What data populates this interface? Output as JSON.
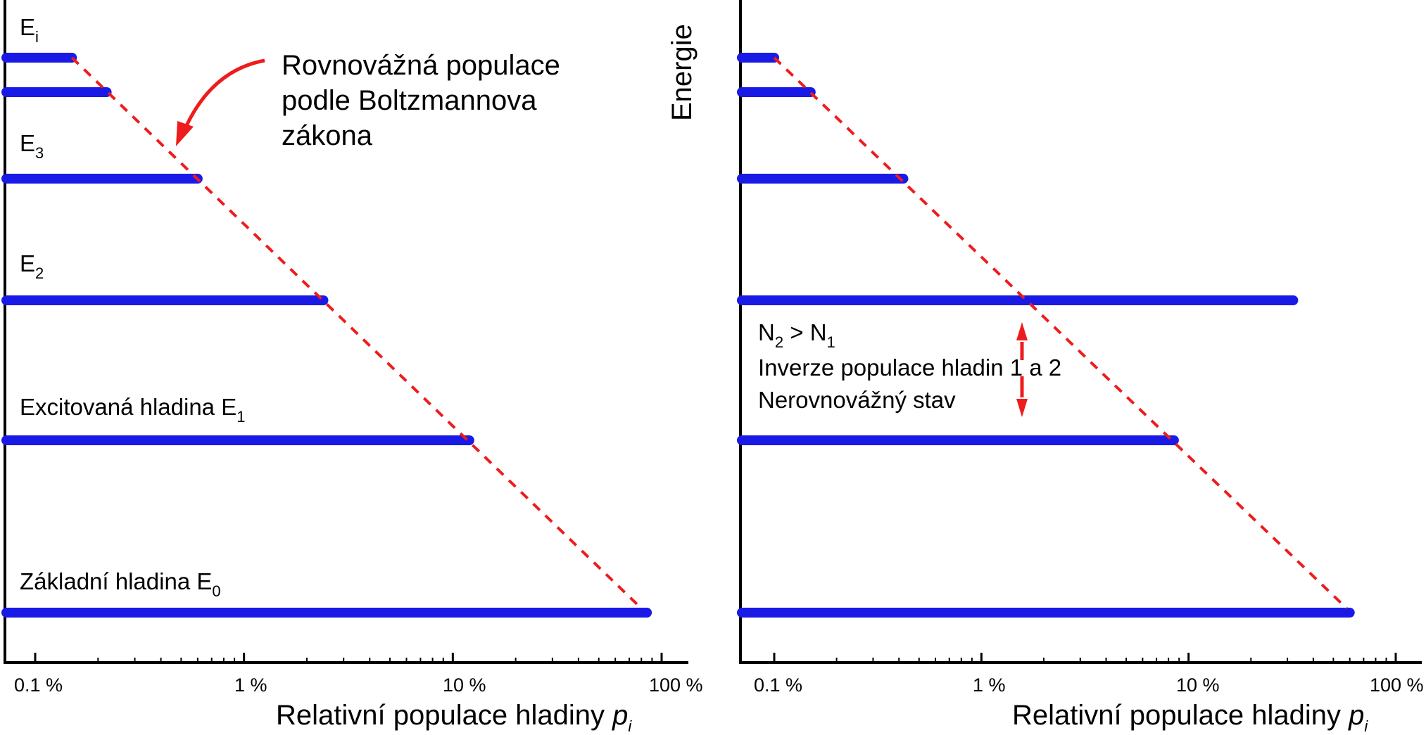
{
  "colors": {
    "bar": "#1a1ae6",
    "boltzmann": "#ee1c1c",
    "axis": "#000000"
  },
  "chart_data": [
    {
      "type": "bar",
      "orientation": "horizontal",
      "x_scale": "log",
      "x_ticks": [
        "0.1 %",
        "1 %",
        "10 %",
        "100 %"
      ],
      "xlabel": "Relativní populace hladiny ",
      "xlabel_var": "p",
      "xlabel_sub": "i",
      "xlim": [
        0.07,
        100
      ],
      "levels": [
        {
          "name": "E0",
          "label_main": "Základní hladina E",
          "label_sub": "0",
          "value": 85
        },
        {
          "name": "E1",
          "label_main": "Excitovaná hladina E",
          "label_sub": "1",
          "value": 12
        },
        {
          "name": "E2",
          "label_main": "E",
          "label_sub": "2",
          "value": 2.4
        },
        {
          "name": "E3",
          "label_main": "E",
          "label_sub": "3",
          "value": 0.6
        },
        {
          "name": "E4",
          "label_main": "",
          "label_sub": "",
          "value": 0.22
        },
        {
          "name": "Ei",
          "label_main": "E",
          "label_sub": "i",
          "value": 0.15
        }
      ],
      "boltzmann_line": {
        "from": [
          0.15,
          "Ei"
        ],
        "to": [
          80,
          "E0"
        ]
      },
      "annotation": [
        "Rovnovážná populace",
        "podle Boltzmannova",
        "zákona"
      ]
    },
    {
      "type": "bar",
      "orientation": "horizontal",
      "x_scale": "log",
      "x_ticks": [
        "0.1 %",
        "1 %",
        "10 %",
        "100 %"
      ],
      "xlabel": "Relativní populace hladiny ",
      "xlabel_var": "p",
      "xlabel_sub": "i",
      "ylabel": "Energie",
      "xlim": [
        0.07,
        100
      ],
      "levels": [
        {
          "name": "E0",
          "value": 60
        },
        {
          "name": "E1",
          "value": 8.5
        },
        {
          "name": "E2",
          "value": 32
        },
        {
          "name": "E3",
          "value": 0.42
        },
        {
          "name": "E4",
          "value": 0.15
        },
        {
          "name": "Ei",
          "value": 0.1
        }
      ],
      "boltzmann_line": {
        "from": [
          0.1,
          "Ei"
        ],
        "to": [
          58,
          "E0"
        ]
      },
      "annotation": {
        "n_main": "N",
        "n2_sub": "2",
        "gt": " > N",
        "n1_sub": "1",
        "line2": "Inverze populace hladin 1 a 2",
        "line3": "Nerovnovážný stav"
      }
    }
  ]
}
